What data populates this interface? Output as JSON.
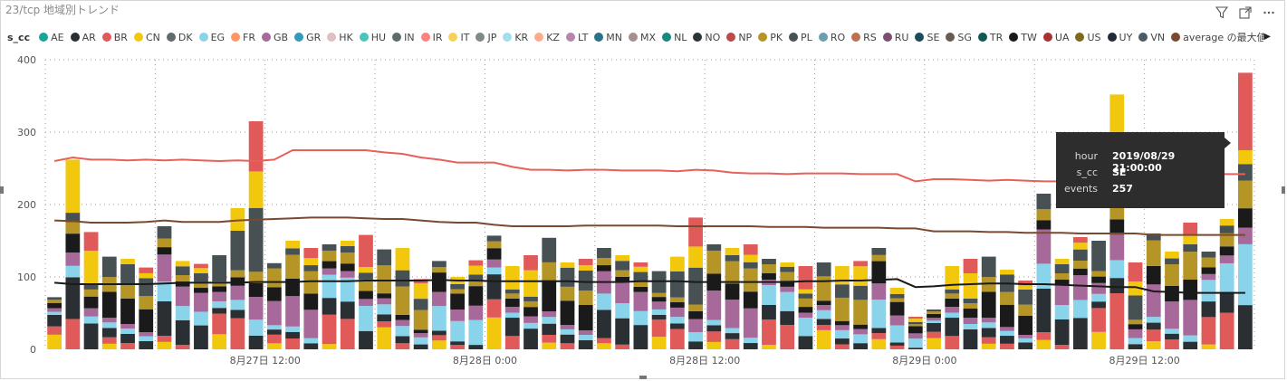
{
  "visual": {
    "title": "23/tcp 地域別トレンド",
    "icons": [
      "filter-icon",
      "focus-mode-icon",
      "more-options-icon"
    ]
  },
  "legend": {
    "title": "s_cc",
    "items": [
      {
        "label": "AE",
        "color": "#1aa59a"
      },
      {
        "label": "AR",
        "color": "#2a2f33"
      },
      {
        "label": "BR",
        "color": "#e05a5a"
      },
      {
        "label": "CN",
        "color": "#f2c80f"
      },
      {
        "label": "DK",
        "color": "#5f6b6d"
      },
      {
        "label": "EG",
        "color": "#8ad4eb"
      },
      {
        "label": "FR",
        "color": "#fe9666"
      },
      {
        "label": "GB",
        "color": "#a66999"
      },
      {
        "label": "GR",
        "color": "#3599b8"
      },
      {
        "label": "HK",
        "color": "#dfbfbf"
      },
      {
        "label": "HU",
        "color": "#4ac5bb"
      },
      {
        "label": "IN",
        "color": "#5f6b6d"
      },
      {
        "label": "IR",
        "color": "#fb8281"
      },
      {
        "label": "IT",
        "color": "#f4d25a"
      },
      {
        "label": "JP",
        "color": "#7f898a"
      },
      {
        "label": "KR",
        "color": "#a4ddee"
      },
      {
        "label": "KZ",
        "color": "#fdab89"
      },
      {
        "label": "LT",
        "color": "#b687ac"
      },
      {
        "label": "MN",
        "color": "#28738a"
      },
      {
        "label": "MX",
        "color": "#a78f8f"
      },
      {
        "label": "NL",
        "color": "#168980"
      },
      {
        "label": "NO",
        "color": "#293537"
      },
      {
        "label": "NP",
        "color": "#bb4a4a"
      },
      {
        "label": "PK",
        "color": "#b59525"
      },
      {
        "label": "PL",
        "color": "#475052"
      },
      {
        "label": "RO",
        "color": "#6a9fb0"
      },
      {
        "label": "RS",
        "color": "#bd7150"
      },
      {
        "label": "RU",
        "color": "#7b4f71"
      },
      {
        "label": "SE",
        "color": "#1c4b5c"
      },
      {
        "label": "SG",
        "color": "#6b5a54"
      },
      {
        "label": "TR",
        "color": "#0e5a52"
      },
      {
        "label": "TW",
        "color": "#1a1a1a"
      },
      {
        "label": "UA",
        "color": "#a83232"
      },
      {
        "label": "US",
        "color": "#7e6a1a"
      },
      {
        "label": "UY",
        "color": "#222a35"
      },
      {
        "label": "VN",
        "color": "#4a5b66"
      },
      {
        "label": "average の最大値",
        "color": "#7a4a2e"
      }
    ],
    "next_page_glyph": "▶"
  },
  "tooltip": {
    "rows": [
      {
        "key": "hour",
        "value": "2019/08/29 21:00:00"
      },
      {
        "key": "s_cc",
        "value": "SE"
      },
      {
        "key": "events",
        "value": "257"
      }
    ]
  },
  "chart_data": {
    "type": "bar",
    "stacked": true,
    "y_ticks": [
      "0",
      "100",
      "200",
      "300",
      "400"
    ],
    "ylim": [
      0,
      400
    ],
    "x_tick_labels": [
      "8月27日 12:00",
      "8月28日 0:00",
      "8月28日 12:00",
      "8月29日 0:00",
      "8月29日 12:00"
    ],
    "x_tick_bar_index": [
      12,
      24,
      36,
      48,
      60
    ],
    "bar_totals": [
      72,
      262,
      162,
      128,
      125,
      113,
      170,
      122,
      118,
      130,
      195,
      315,
      119,
      150,
      140,
      145,
      150,
      158,
      138,
      140,
      97,
      122,
      100,
      123,
      157,
      115,
      130,
      154,
      120,
      125,
      140,
      130,
      120,
      108,
      128,
      182,
      145,
      140,
      145,
      125,
      120,
      115,
      120,
      115,
      122,
      140,
      85,
      45,
      55,
      115,
      125,
      128,
      110,
      95,
      215,
      125,
      155,
      150,
      352,
      120,
      160,
      135,
      175,
      135,
      180,
      382
    ],
    "series_colors_cycle": [
      "#f2c80f",
      "#e05a5a",
      "#2a2f33",
      "#8ad4eb",
      "#a66999",
      "#1a1a1a",
      "#b59525",
      "#475052"
    ],
    "lines": [
      {
        "name": "",
        "color": "#e8605a",
        "values": [
          260,
          265,
          262,
          262,
          261,
          262,
          261,
          262,
          261,
          260,
          261,
          260,
          262,
          275,
          275,
          275,
          275,
          275,
          272,
          270,
          265,
          262,
          258,
          258,
          258,
          252,
          248,
          248,
          247,
          248,
          248,
          247,
          247,
          247,
          246,
          248,
          247,
          244,
          243,
          243,
          242,
          243,
          243,
          243,
          242,
          242,
          242,
          232,
          235,
          235,
          234,
          233,
          234,
          233,
          232,
          232,
          232,
          234,
          234,
          236,
          238,
          238,
          240,
          242,
          242,
          242
        ]
      },
      {
        "name": "average の最大値",
        "color": "#7a4a2e",
        "values": [
          178,
          177,
          175,
          175,
          175,
          176,
          178,
          176,
          176,
          176,
          178,
          179,
          180,
          181,
          182,
          182,
          182,
          181,
          180,
          180,
          178,
          176,
          175,
          175,
          172,
          170,
          170,
          170,
          170,
          171,
          171,
          171,
          171,
          171,
          170,
          170,
          170,
          170,
          170,
          169,
          169,
          169,
          168,
          168,
          168,
          168,
          167,
          167,
          163,
          163,
          163,
          162,
          162,
          161,
          161,
          161,
          160,
          160,
          160,
          160,
          158,
          158,
          158,
          158,
          158,
          158
        ]
      },
      {
        "name": "",
        "color": "#1a1a1a",
        "values": [
          92,
          90,
          90,
          90,
          90,
          90,
          91,
          92,
          92,
          92,
          92,
          93,
          93,
          93,
          94,
          94,
          94,
          95,
          95,
          95,
          95,
          96,
          95,
          95,
          94,
          94,
          94,
          94,
          94,
          93,
          93,
          93,
          94,
          94,
          94,
          93,
          93,
          93,
          93,
          93,
          93,
          94,
          94,
          95,
          95,
          96,
          97,
          86,
          87,
          89,
          90,
          91,
          91,
          90,
          90,
          89,
          88,
          87,
          86,
          86,
          80,
          79,
          78,
          78,
          78,
          78
        ]
      }
    ]
  }
}
